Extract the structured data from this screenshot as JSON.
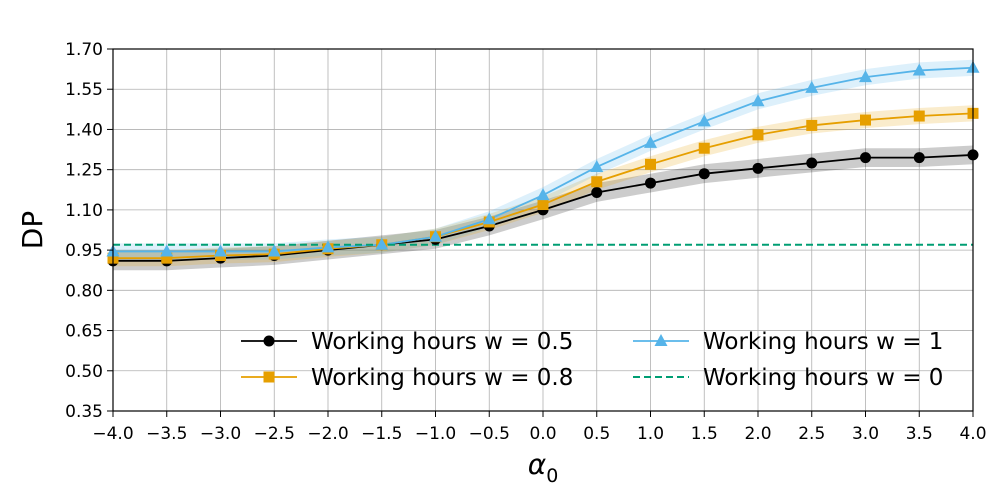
{
  "chart_data": {
    "type": "line",
    "xlabel": "α",
    "xlabel_sub": "0",
    "ylabel": "DP",
    "xlim": [
      -4.0,
      4.0
    ],
    "ylim": [
      0.35,
      1.7
    ],
    "x_ticks": [
      -4.0,
      -3.5,
      -3.0,
      -2.5,
      -2.0,
      -1.5,
      -1.0,
      -0.5,
      0.0,
      0.5,
      1.0,
      1.5,
      2.0,
      2.5,
      3.0,
      3.5,
      4.0
    ],
    "x_tick_labels": [
      "−4.0",
      "−3.5",
      "−3.0",
      "−2.5",
      "−2.0",
      "−1.5",
      "−1.0",
      "−0.5",
      "0.0",
      "0.5",
      "1.0",
      "1.5",
      "2.0",
      "2.5",
      "3.0",
      "3.5",
      "4.0"
    ],
    "y_ticks": [
      0.35,
      0.5,
      0.65,
      0.8,
      0.95,
      1.1,
      1.25,
      1.4,
      1.55,
      1.7
    ],
    "y_tick_labels": [
      "0.35",
      "0.50",
      "0.65",
      "0.80",
      "0.95",
      "1.10",
      "1.25",
      "1.40",
      "1.55",
      "1.70"
    ],
    "grid": true,
    "legend_position": "lower-right",
    "x": [
      -4.0,
      -3.5,
      -3.0,
      -2.5,
      -2.0,
      -1.5,
      -1.0,
      -0.5,
      0.0,
      0.5,
      1.0,
      1.5,
      2.0,
      2.5,
      3.0,
      3.5,
      4.0
    ],
    "series": [
      {
        "name": "Working hours w = 0.5",
        "color": "#000000",
        "marker": "circle",
        "values": [
          0.91,
          0.91,
          0.92,
          0.93,
          0.95,
          0.97,
          0.99,
          1.04,
          1.1,
          1.165,
          1.2,
          1.235,
          1.255,
          1.275,
          1.295,
          1.295,
          1.305
        ],
        "band": 0.035
      },
      {
        "name": "Working hours w = 0.8",
        "color": "#E69F00",
        "marker": "square",
        "values": [
          0.92,
          0.92,
          0.93,
          0.935,
          0.955,
          0.97,
          1.0,
          1.055,
          1.12,
          1.205,
          1.27,
          1.33,
          1.38,
          1.415,
          1.435,
          1.45,
          1.46
        ],
        "band": 0.03
      },
      {
        "name": "Working hours w = 1",
        "color": "#56B4E9",
        "marker": "triangle",
        "values": [
          0.945,
          0.945,
          0.945,
          0.945,
          0.96,
          0.97,
          1.0,
          1.065,
          1.155,
          1.26,
          1.35,
          1.43,
          1.505,
          1.555,
          1.595,
          1.62,
          1.63
        ],
        "band": 0.03
      },
      {
        "name": "Working hours w = 0",
        "color": "#009E73",
        "marker": "none",
        "dashed": true,
        "constant": 0.97
      }
    ]
  }
}
